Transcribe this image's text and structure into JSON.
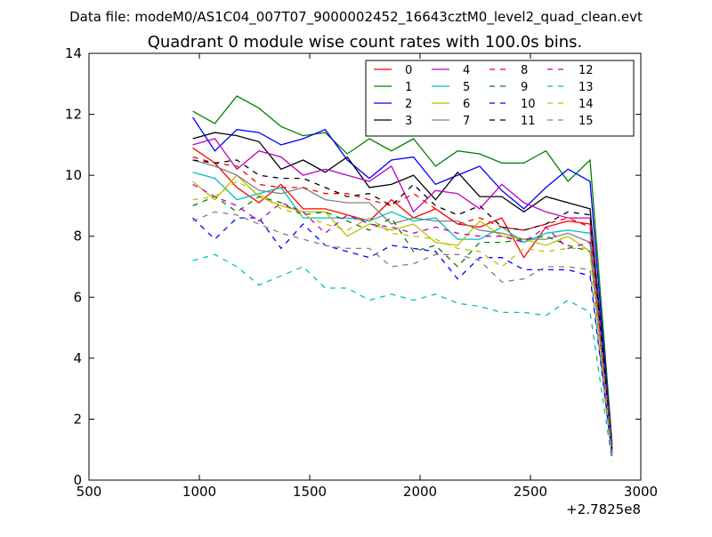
{
  "suptitle": "Data file: modeM0/AS1C04_007T07_9000002452_16643cztM0_level2_quad_clean.evt",
  "chart_data": {
    "type": "line",
    "title": "Quadrant 0 module wise count rates with 100.0s bins.",
    "xlabel": "",
    "ylabel": "",
    "x_offset_label": "+2.7825e8",
    "xlim": [
      500,
      3000
    ],
    "ylim": [
      0,
      14
    ],
    "xticks": [
      500,
      1000,
      1500,
      2000,
      2500,
      3000
    ],
    "yticks": [
      0,
      2,
      4,
      6,
      8,
      10,
      12,
      14
    ],
    "grid": false,
    "legend_position": "top-right",
    "x": [
      970,
      1070,
      1170,
      1270,
      1370,
      1470,
      1570,
      1670,
      1770,
      1870,
      1970,
      2070,
      2170,
      2270,
      2370,
      2470,
      2570,
      2670,
      2770,
      2870
    ],
    "series": [
      {
        "name": "0",
        "color": "#ff0000",
        "dash": "solid",
        "values": [
          10.9,
          10.4,
          9.6,
          9.1,
          9.7,
          8.9,
          8.9,
          8.7,
          8.5,
          9.2,
          8.6,
          8.9,
          8.4,
          8.3,
          8.6,
          7.3,
          8.3,
          8.5,
          8.4,
          1.1
        ]
      },
      {
        "name": "1",
        "color": "#008000",
        "dash": "solid",
        "values": [
          12.1,
          11.7,
          12.6,
          12.2,
          11.6,
          11.3,
          11.4,
          10.7,
          11.2,
          10.8,
          11.2,
          10.3,
          10.8,
          10.7,
          10.4,
          10.4,
          10.8,
          9.8,
          10.5,
          1.2
        ]
      },
      {
        "name": "2",
        "color": "#0000ff",
        "dash": "solid",
        "values": [
          11.9,
          10.8,
          11.5,
          11.4,
          11.0,
          11.2,
          11.5,
          10.5,
          9.9,
          10.5,
          10.6,
          9.7,
          10.0,
          10.3,
          9.5,
          8.9,
          9.6,
          10.2,
          9.8,
          1.0
        ]
      },
      {
        "name": "3",
        "color": "#000000",
        "dash": "solid",
        "values": [
          11.2,
          11.4,
          11.3,
          11.1,
          10.2,
          10.5,
          10.1,
          10.6,
          9.6,
          9.7,
          10.0,
          9.2,
          10.1,
          9.3,
          9.3,
          8.8,
          9.3,
          9.1,
          8.9,
          1.0
        ]
      },
      {
        "name": "4",
        "color": "#bf00bf",
        "dash": "solid",
        "values": [
          11.0,
          11.2,
          10.2,
          10.8,
          10.6,
          10.0,
          10.2,
          10.0,
          9.8,
          10.3,
          8.8,
          9.5,
          9.4,
          8.9,
          9.7,
          9.1,
          8.8,
          8.6,
          8.6,
          1.0
        ]
      },
      {
        "name": "5",
        "color": "#00bfbf",
        "dash": "solid",
        "values": [
          10.1,
          9.9,
          9.2,
          9.4,
          9.6,
          8.6,
          8.6,
          8.6,
          8.5,
          8.8,
          8.5,
          8.6,
          7.9,
          7.9,
          8.3,
          7.8,
          8.1,
          8.2,
          8.1,
          0.9
        ]
      },
      {
        "name": "6",
        "color": "#bfbf00",
        "dash": "solid",
        "values": [
          9.8,
          9.2,
          10.0,
          9.3,
          9.0,
          8.8,
          8.8,
          8.0,
          8.4,
          8.2,
          8.4,
          7.8,
          7.7,
          8.5,
          8.0,
          7.9,
          7.7,
          8.0,
          7.5,
          0.9
        ]
      },
      {
        "name": "7",
        "color": "#808080",
        "dash": "solid",
        "values": [
          10.5,
          10.3,
          10.0,
          9.5,
          9.4,
          9.6,
          9.2,
          9.1,
          9.1,
          8.4,
          8.6,
          8.5,
          8.5,
          8.2,
          8.1,
          7.9,
          7.9,
          8.1,
          7.8,
          0.8
        ]
      },
      {
        "name": "8",
        "color": "#ff0000",
        "dash": "dashed",
        "values": [
          10.6,
          10.4,
          10.3,
          9.7,
          9.6,
          9.6,
          9.4,
          9.4,
          9.2,
          9.0,
          9.4,
          8.9,
          8.4,
          8.6,
          8.3,
          8.2,
          8.4,
          8.6,
          8.3,
          0.9
        ]
      },
      {
        "name": "9",
        "color": "#008000",
        "dash": "dashed",
        "values": [
          9.0,
          9.3,
          8.8,
          9.3,
          9.1,
          8.7,
          8.8,
          8.5,
          8.2,
          8.6,
          7.5,
          7.7,
          7.0,
          7.8,
          7.8,
          7.9,
          8.0,
          7.7,
          7.5,
          0.8
        ]
      },
      {
        "name": "10",
        "color": "#0000ff",
        "dash": "dashed",
        "values": [
          8.6,
          7.9,
          8.6,
          8.6,
          7.6,
          8.4,
          7.7,
          7.5,
          7.3,
          7.7,
          7.6,
          7.5,
          6.6,
          7.3,
          7.3,
          6.9,
          6.9,
          6.9,
          6.7,
          0.8
        ]
      },
      {
        "name": "11",
        "color": "#000000",
        "dash": "dashed",
        "values": [
          10.5,
          10.4,
          10.5,
          10.0,
          9.9,
          9.9,
          9.6,
          9.3,
          9.4,
          9.0,
          9.7,
          9.0,
          8.7,
          9.0,
          8.3,
          8.2,
          8.4,
          8.8,
          8.7,
          0.9
        ]
      },
      {
        "name": "12",
        "color": "#bf00bf",
        "dash": "dashed",
        "values": [
          9.7,
          9.3,
          9.0,
          8.5,
          9.1,
          8.8,
          8.1,
          8.7,
          8.4,
          8.3,
          8.1,
          8.3,
          8.1,
          8.0,
          8.0,
          7.8,
          8.3,
          7.6,
          7.8,
          0.8
        ]
      },
      {
        "name": "13",
        "color": "#00bfbf",
        "dash": "dashed",
        "values": [
          7.2,
          7.4,
          7.0,
          6.4,
          6.7,
          7.0,
          6.3,
          6.3,
          5.9,
          6.1,
          5.9,
          6.1,
          5.8,
          5.7,
          5.5,
          5.5,
          5.4,
          5.9,
          5.5,
          0.6
        ]
      },
      {
        "name": "14",
        "color": "#bfbf00",
        "dash": "dashed",
        "values": [
          9.2,
          9.3,
          9.8,
          9.4,
          8.9,
          8.7,
          8.4,
          8.2,
          8.6,
          8.1,
          8.0,
          7.9,
          7.6,
          7.5,
          7.0,
          7.6,
          7.5,
          7.6,
          7.6,
          0.8
        ]
      },
      {
        "name": "15",
        "color": "#808080",
        "dash": "dashed",
        "values": [
          8.5,
          8.8,
          8.7,
          8.4,
          8.1,
          7.9,
          7.7,
          7.6,
          7.6,
          7.0,
          7.1,
          7.4,
          7.4,
          7.2,
          6.5,
          6.6,
          7.0,
          7.0,
          6.9,
          0.7
        ]
      }
    ]
  }
}
